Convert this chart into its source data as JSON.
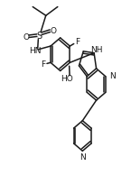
{
  "bg_color": "#ffffff",
  "line_color": "#1a1a1a",
  "lw": 1.1,
  "figsize": [
    1.45,
    2.15
  ],
  "dpi": 100,
  "xlim": [
    0,
    1
  ],
  "ylim": [
    0,
    1
  ]
}
